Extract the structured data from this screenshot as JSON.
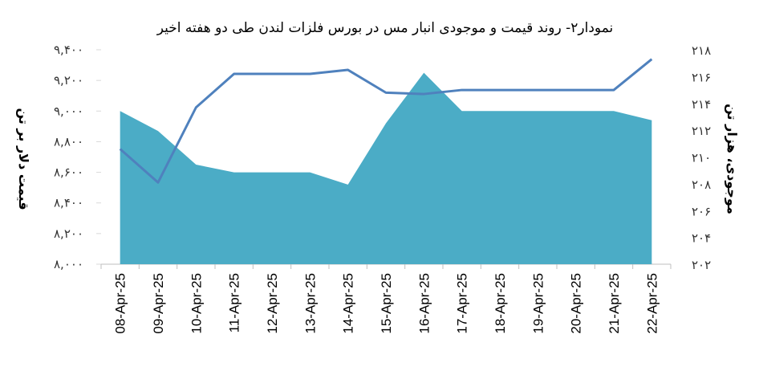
{
  "chart_data": {
    "type": "line",
    "title": "نمودار۲- روند قیمت و موجودی انبار مس در بورس فلزات لندن طی دو هفته اخیر",
    "ylabel_left": "قیمت دلار بر تن",
    "ylabel_right": "موجودی، هزار تن",
    "categories": [
      "08-Apr-25",
      "09-Apr-25",
      "10-Apr-25",
      "11-Apr-25",
      "12-Apr-25",
      "13-Apr-25",
      "14-Apr-25",
      "15-Apr-25",
      "16-Apr-25",
      "17-Apr-25",
      "18-Apr-25",
      "19-Apr-25",
      "20-Apr-25",
      "21-Apr-25",
      "22-Apr-25"
    ],
    "left_axis": {
      "min": 8000,
      "max": 9400,
      "ticks": [
        "۸,۰۰۰",
        "۸,۲۰۰",
        "۸,۴۰۰",
        "۸,۶۰۰",
        "۸,۸۰۰",
        "۹,۰۰۰",
        "۹,۲۰۰",
        "۹,۴۰۰"
      ]
    },
    "right_axis": {
      "min": 202,
      "max": 218,
      "ticks": [
        "۲۰۲",
        "۲۰۴",
        "۲۰۶",
        "۲۰۸",
        "۲۱۰",
        "۲۱۲",
        "۲۱۴",
        "۲۱۶",
        "۲۱۸"
      ]
    },
    "series": [
      {
        "type": "area",
        "axis": "left",
        "color": "#4bacc6",
        "values": [
          9000,
          8870,
          8650,
          8600,
          8600,
          8600,
          8520,
          8920,
          9250,
          9000,
          9000,
          9000,
          9000,
          9000,
          8940
        ]
      },
      {
        "type": "line",
        "axis": "right",
        "color": "#4f81bd",
        "values": [
          210.6,
          208.1,
          213.7,
          216.2,
          216.2,
          216.2,
          216.5,
          214.8,
          214.7,
          215.0,
          215.0,
          215.0,
          215.0,
          215.0,
          217.3
        ]
      }
    ]
  }
}
